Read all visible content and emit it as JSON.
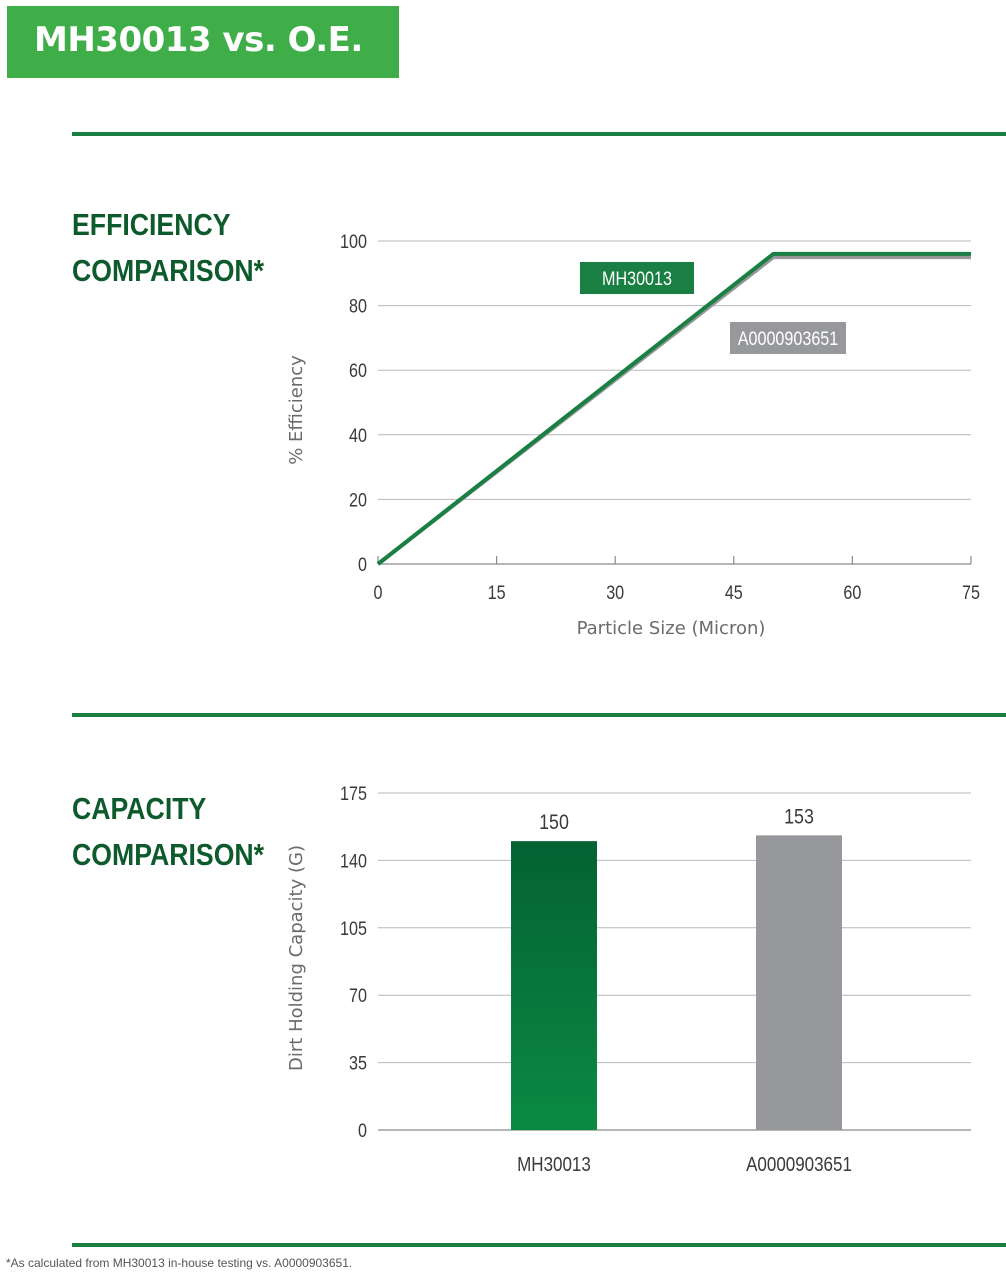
{
  "header": {
    "title": "MH30013 vs. O.E."
  },
  "efficiency": {
    "title_line1": "EFFICIENCY",
    "title_line2": "COMPARISON*"
  },
  "capacity": {
    "title_line1": "CAPACITY",
    "title_line2": "COMPARISON*"
  },
  "footnote": "*As calculated from MH30013 in-house testing vs. A0000903651.",
  "colors": {
    "brand_green": "#3fae49",
    "dark_green": "#0d5a2c",
    "line_green": "#1a7f43",
    "gray": "#97989b"
  },
  "chart_data": [
    {
      "type": "line",
      "title": "",
      "xlabel": "Particle Size (Micron)",
      "ylabel": "% Efficiency",
      "xlim": [
        0,
        75
      ],
      "ylim": [
        0,
        100
      ],
      "xticks": [
        0,
        15,
        30,
        45,
        60,
        75
      ],
      "yticks": [
        0,
        20,
        40,
        60,
        80,
        100
      ],
      "grid": "horizontal",
      "series": [
        {
          "name": "MH30013",
          "color": "#1a7f43",
          "x": [
            0,
            50,
            75
          ],
          "y": [
            0,
            96,
            96
          ]
        },
        {
          "name": "A0000903651",
          "color": "#97989b",
          "x": [
            0,
            50,
            75
          ],
          "y": [
            0,
            95,
            95
          ]
        }
      ]
    },
    {
      "type": "bar",
      "title": "",
      "xlabel": "",
      "ylabel": "Dirt Holding Capacity (G)",
      "ylim": [
        0,
        175
      ],
      "yticks": [
        0,
        35,
        70,
        105,
        140,
        175
      ],
      "grid": "horizontal",
      "categories": [
        "MH30013",
        "A0000903651"
      ],
      "values": [
        150,
        153
      ],
      "colors": [
        "#1a7f43",
        "#97989b"
      ]
    }
  ]
}
